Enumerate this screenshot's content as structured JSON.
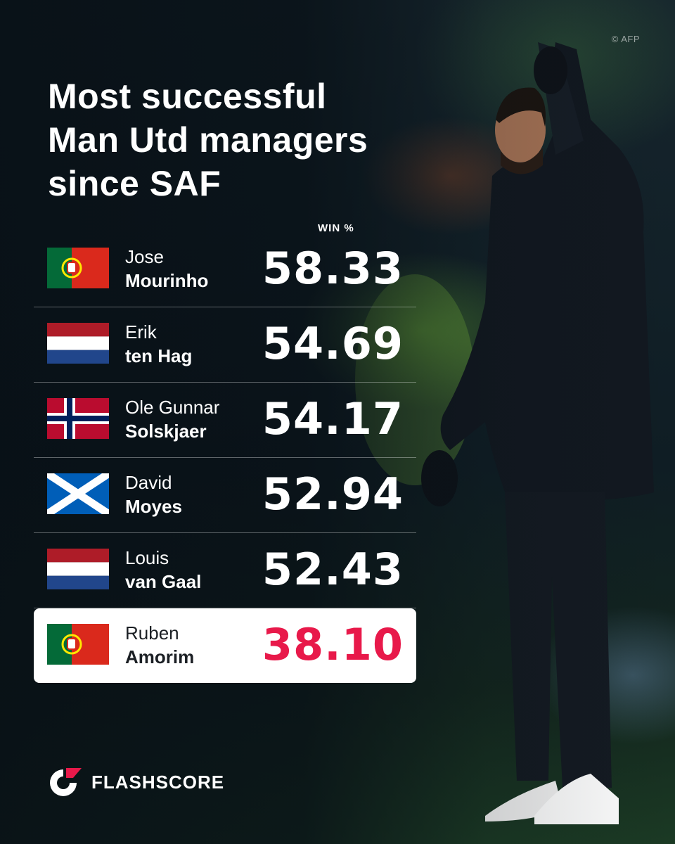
{
  "credit": "© AFP",
  "title_lines": [
    "Most successful",
    "Man Utd managers",
    "since SAF"
  ],
  "brand": "FLASHSCORE",
  "highlight_color": "#e8194a",
  "chart_data": {
    "type": "table",
    "title": "Most successful Man Utd managers since SAF",
    "value_label": "WIN %",
    "rows": [
      {
        "first": "Jose",
        "last": "Mourinho",
        "flag": "portugal-flag",
        "value": "58.33"
      },
      {
        "first": "Erik",
        "last": "ten Hag",
        "flag": "netherlands-flag",
        "value": "54.69"
      },
      {
        "first": "Ole Gunnar",
        "last": "Solskjaer",
        "flag": "norway-flag",
        "value": "54.17"
      },
      {
        "first": "David",
        "last": "Moyes",
        "flag": "scotland-flag",
        "value": "52.94"
      },
      {
        "first": "Louis",
        "last": "van Gaal",
        "flag": "netherlands-flag",
        "value": "52.43"
      },
      {
        "first": "Ruben",
        "last": "Amorim",
        "flag": "portugal-flag",
        "value": "38.10",
        "highlight": true
      }
    ]
  }
}
